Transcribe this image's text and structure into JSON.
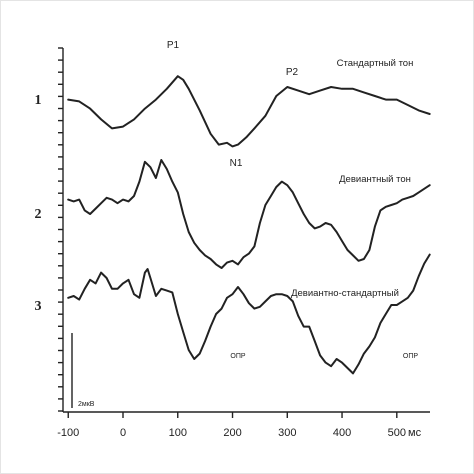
{
  "chart_data": {
    "type": "line",
    "title": "",
    "xlabel": "",
    "ylabel": "",
    "x_unit": "мс",
    "xlim": [
      -100,
      560
    ],
    "x_ticks": [
      -100,
      0,
      100,
      200,
      300,
      400,
      500
    ],
    "x_tick_labels": [
      "-100",
      "0",
      "100",
      "200",
      "300",
      "400",
      "500"
    ],
    "scale_bar_label": "2мкВ",
    "scale_bar_uv": 2,
    "grid": false,
    "series": [
      {
        "name": "Стандартный тон",
        "number": "1",
        "x": [
          -100,
          -80,
          -60,
          -40,
          -20,
          0,
          20,
          40,
          60,
          80,
          100,
          110,
          120,
          140,
          160,
          175,
          190,
          200,
          210,
          225,
          240,
          260,
          280,
          300,
          320,
          340,
          360,
          380,
          400,
          420,
          440,
          460,
          480,
          500,
          520,
          540,
          560
        ],
        "values": [
          0.3,
          0.2,
          -0.2,
          -0.8,
          -1.3,
          -1.2,
          -0.8,
          -0.2,
          0.3,
          0.9,
          1.6,
          1.4,
          0.9,
          -0.3,
          -1.6,
          -2.2,
          -2.1,
          -2.3,
          -2.2,
          -1.8,
          -1.3,
          -0.6,
          0.5,
          1.0,
          0.8,
          0.6,
          0.8,
          1.0,
          0.9,
          0.9,
          0.7,
          0.5,
          0.3,
          0.3,
          0.0,
          -0.3,
          -0.5
        ]
      },
      {
        "name": "Девиантный тон",
        "number": "2",
        "x": [
          -100,
          -90,
          -80,
          -70,
          -60,
          -50,
          -40,
          -30,
          -20,
          -10,
          0,
          10,
          20,
          30,
          40,
          50,
          60,
          70,
          80,
          90,
          100,
          110,
          120,
          130,
          140,
          150,
          160,
          170,
          180,
          190,
          200,
          210,
          220,
          230,
          240,
          250,
          260,
          270,
          280,
          290,
          300,
          310,
          320,
          330,
          340,
          350,
          360,
          370,
          380,
          390,
          400,
          410,
          420,
          430,
          440,
          450,
          460,
          470,
          480,
          490,
          500,
          510,
          520,
          530,
          540,
          550,
          560
        ],
        "values": [
          0.8,
          0.7,
          0.8,
          0.2,
          0.0,
          0.3,
          0.6,
          0.9,
          0.8,
          0.6,
          0.8,
          0.7,
          1.0,
          1.8,
          2.9,
          2.6,
          2.0,
          3.0,
          2.5,
          1.8,
          1.2,
          0.0,
          -1.0,
          -1.6,
          -2.0,
          -2.3,
          -2.5,
          -2.8,
          -3.0,
          -2.7,
          -2.6,
          -2.8,
          -2.4,
          -2.2,
          -1.8,
          -0.5,
          0.5,
          1.0,
          1.5,
          1.8,
          1.6,
          1.2,
          0.6,
          0.0,
          -0.5,
          -0.8,
          -0.7,
          -0.5,
          -0.6,
          -1.0,
          -1.5,
          -2.0,
          -2.3,
          -2.6,
          -2.5,
          -2.0,
          -0.7,
          0.2,
          0.4,
          0.5,
          0.6,
          0.8,
          0.9,
          1.0,
          1.2,
          1.4,
          1.6
        ]
      },
      {
        "name": "Девиантно-стандартный",
        "number": "3",
        "x": [
          -100,
          -90,
          -80,
          -70,
          -60,
          -50,
          -40,
          -30,
          -20,
          -10,
          0,
          10,
          20,
          30,
          40,
          45,
          50,
          60,
          70,
          80,
          90,
          100,
          110,
          120,
          130,
          140,
          150,
          160,
          170,
          180,
          190,
          200,
          210,
          220,
          230,
          240,
          250,
          260,
          270,
          280,
          290,
          300,
          310,
          320,
          330,
          340,
          350,
          360,
          370,
          380,
          390,
          400,
          410,
          420,
          430,
          440,
          450,
          460,
          470,
          480,
          490,
          500,
          510,
          520,
          530,
          540,
          550,
          560
        ],
        "values": [
          0.4,
          0.5,
          0.3,
          0.9,
          1.4,
          1.2,
          1.8,
          1.5,
          0.9,
          0.9,
          1.2,
          1.4,
          0.6,
          0.4,
          1.8,
          2.0,
          1.5,
          0.5,
          0.9,
          0.8,
          0.7,
          -0.5,
          -1.5,
          -2.5,
          -3.0,
          -2.7,
          -2.0,
          -1.2,
          -0.5,
          -0.2,
          0.4,
          0.6,
          1.0,
          0.6,
          0.1,
          -0.2,
          -0.1,
          0.2,
          0.5,
          0.6,
          0.6,
          0.5,
          0.2,
          -0.6,
          -1.2,
          -1.2,
          -2.0,
          -2.8,
          -3.2,
          -3.4,
          -3.0,
          -3.2,
          -3.5,
          -3.8,
          -3.3,
          -2.7,
          -2.3,
          -1.8,
          -1.0,
          -0.5,
          0.0,
          0.0,
          0.2,
          0.4,
          0.8,
          1.6,
          2.3,
          2.8
        ]
      }
    ],
    "annotations": [
      {
        "text": "P1",
        "series": 0,
        "x": 100
      },
      {
        "text": "N1",
        "series": 0,
        "x": 200
      },
      {
        "text": "P2",
        "series": 0,
        "x": 305
      },
      {
        "text": "ОПР",
        "series": 2,
        "x": 210
      },
      {
        "text": "ОПР",
        "series": 2,
        "x": 525
      }
    ]
  }
}
